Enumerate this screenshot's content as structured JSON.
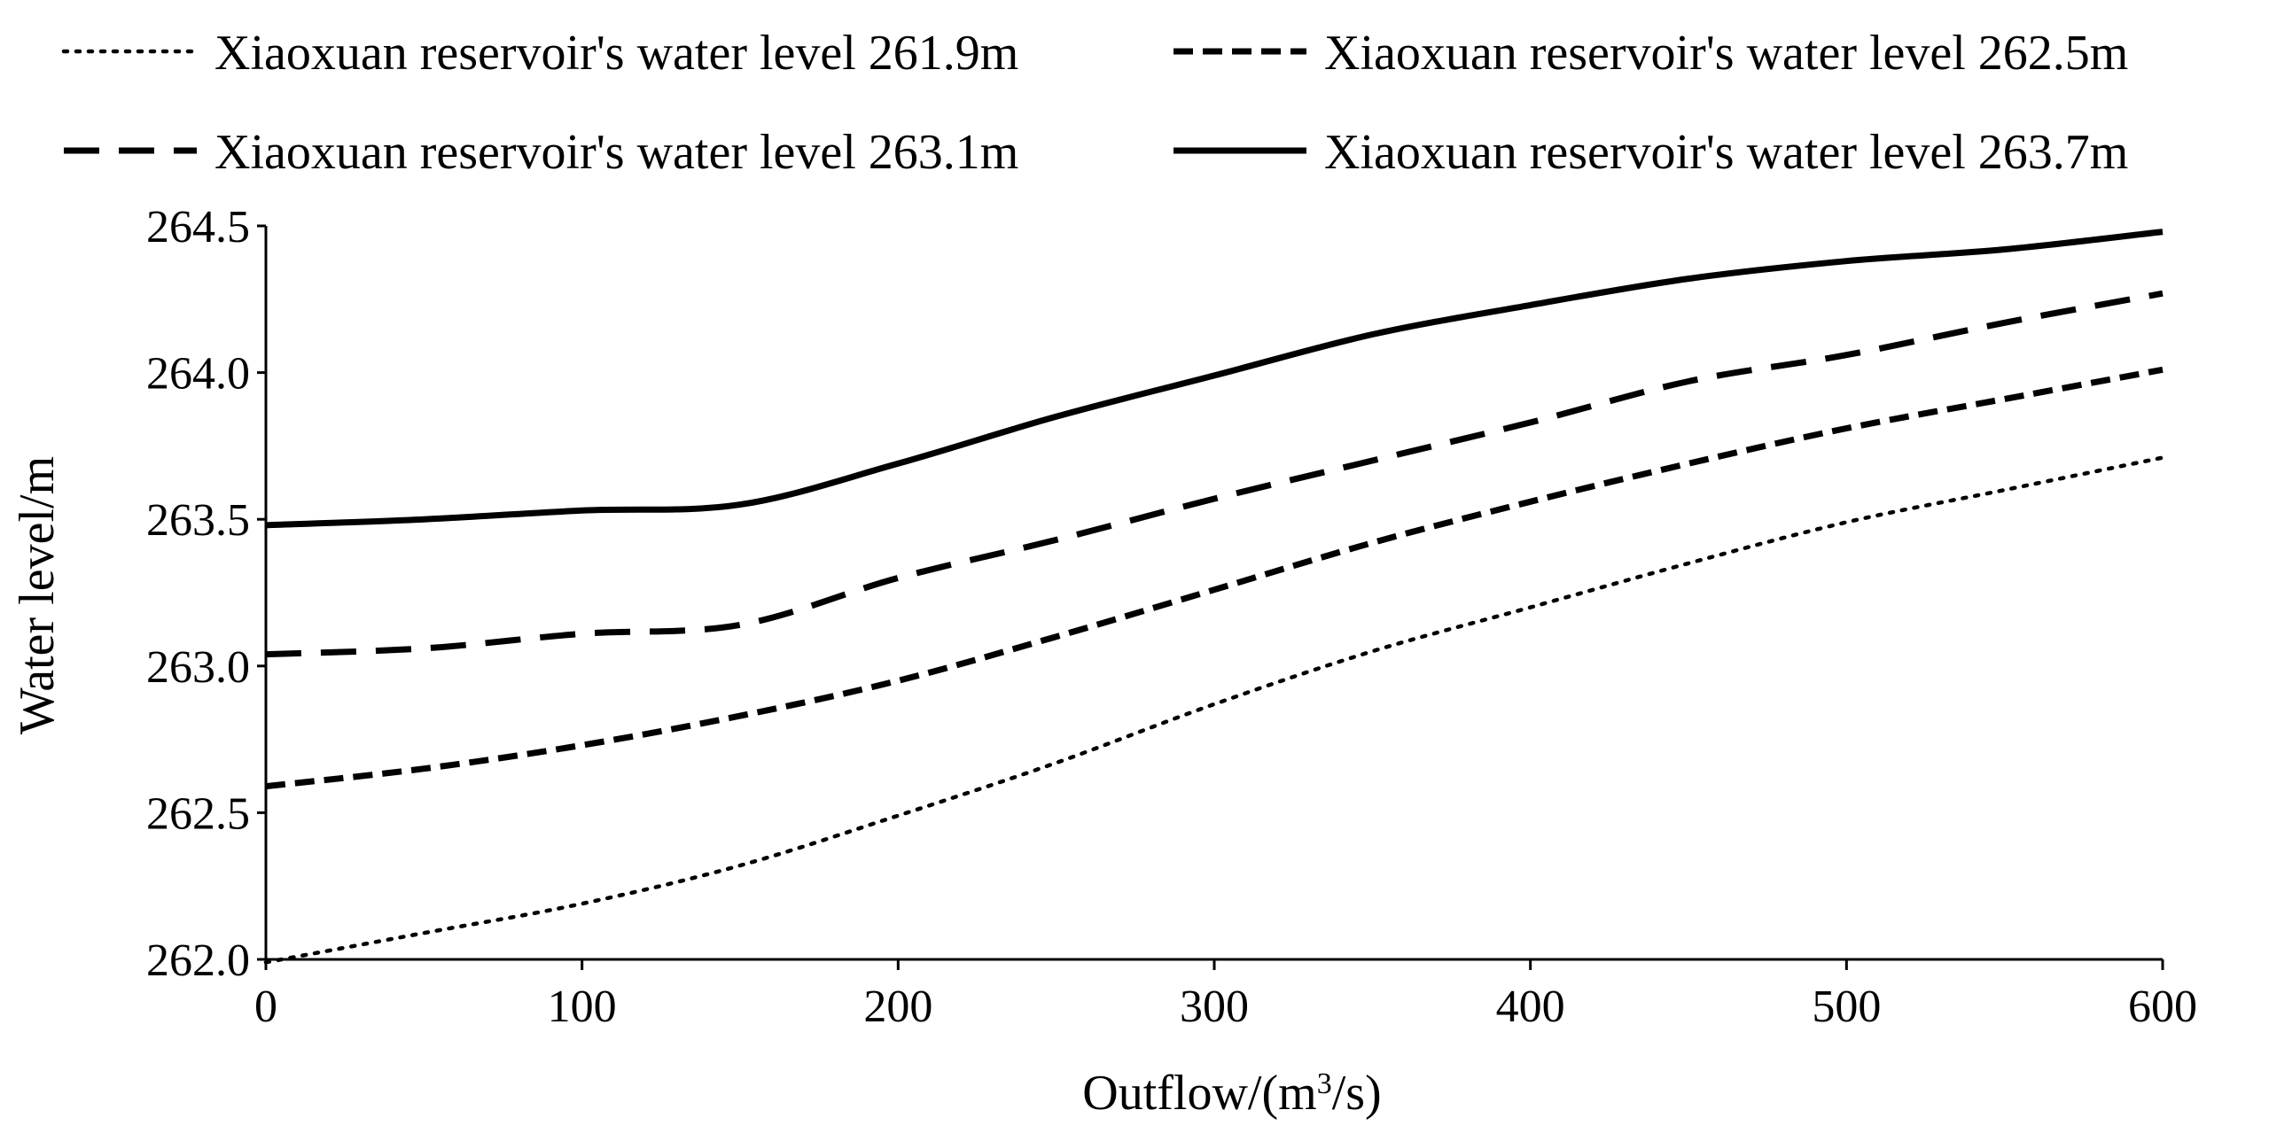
{
  "chart_data": {
    "type": "line",
    "title": "",
    "xlabel": "Outflow/(m",
    "xlabel_sup": "3",
    "xlabel_suffix": "/s)",
    "ylabel": "Water level/m",
    "xlim": [
      0,
      600
    ],
    "ylim": [
      262.0,
      264.5
    ],
    "x_ticks": [
      0,
      100,
      200,
      300,
      400,
      500,
      600
    ],
    "y_ticks": [
      262.0,
      262.5,
      263.0,
      263.5,
      264.0,
      264.5
    ],
    "x_tick_labels": [
      "0",
      "100",
      "200",
      "300",
      "400",
      "500",
      "600"
    ],
    "y_tick_labels": [
      "262.0",
      "262.5",
      "263.0",
      "263.5",
      "264.0",
      "264.5"
    ],
    "grid": false,
    "legend_position": "top",
    "x": [
      0,
      50,
      100,
      150,
      200,
      250,
      300,
      350,
      400,
      450,
      500,
      550,
      600
    ],
    "series": [
      {
        "name": "Xiaoxuan reservoir's water level 261.9m",
        "style": "dotted",
        "values": [
          261.99,
          262.09,
          262.19,
          262.32,
          262.49,
          262.67,
          262.87,
          263.05,
          263.2,
          263.35,
          263.49,
          263.6,
          263.71
        ]
      },
      {
        "name": "Xiaoxuan reservoir's water level 262.5m",
        "style": "short-dash",
        "values": [
          262.59,
          262.65,
          262.73,
          262.83,
          262.95,
          263.1,
          263.26,
          263.42,
          263.56,
          263.69,
          263.81,
          263.91,
          264.01
        ]
      },
      {
        "name": "Xiaoxuan reservoir's water level 263.1m",
        "style": "long-dash",
        "values": [
          263.04,
          263.06,
          263.11,
          263.14,
          263.3,
          263.43,
          263.57,
          263.7,
          263.83,
          263.97,
          264.06,
          264.17,
          264.27
        ]
      },
      {
        "name": "Xiaoxuan reservoir's water level 263.7m",
        "style": "solid",
        "values": [
          263.48,
          263.5,
          263.53,
          263.55,
          263.69,
          263.85,
          263.99,
          264.13,
          264.23,
          264.32,
          264.38,
          264.42,
          264.48
        ]
      }
    ]
  }
}
